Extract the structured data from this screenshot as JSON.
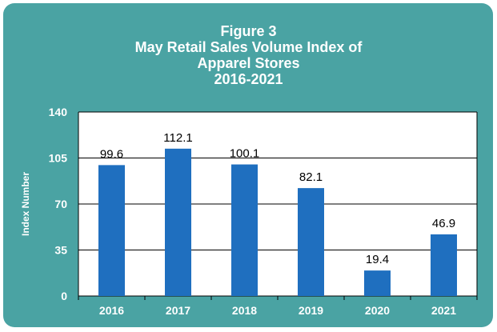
{
  "chart_data": {
    "type": "bar",
    "title_lines": [
      "Figure 3",
      "May Retail Sales Volume Index of",
      "Apparel Stores",
      "2016-2021"
    ],
    "ylabel": "Index Number",
    "xlabel": "",
    "categories": [
      "2016",
      "2017",
      "2018",
      "2019",
      "2020",
      "2021"
    ],
    "values": [
      99.6,
      112.1,
      100.1,
      82.1,
      19.4,
      46.9
    ],
    "data_labels": [
      "99.6",
      "112.1",
      "100.1",
      "82.1",
      "19.4",
      "46.9"
    ],
    "y_ticks": [
      "0",
      "35",
      "70",
      "105",
      "140"
    ],
    "ylim": [
      0,
      140
    ],
    "grid": true,
    "legend": "none",
    "colors": {
      "bar": "#1f6fbf",
      "background": "#4aa3a3",
      "plot": "#ffffff"
    }
  }
}
